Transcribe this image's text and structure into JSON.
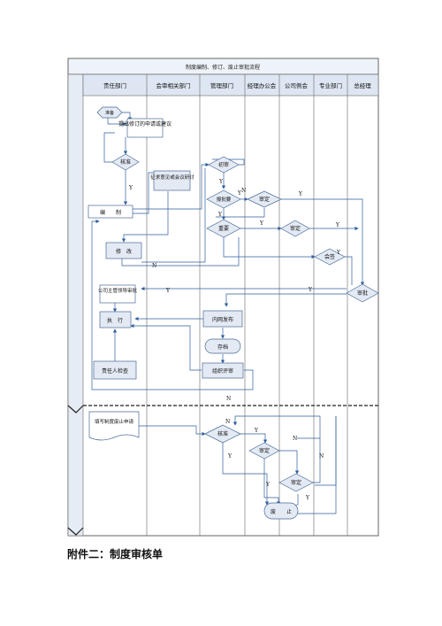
{
  "diagram": {
    "title": "制度编制、修订、废止审批流程",
    "lanes": [
      "责任部门",
      "会审相关部门",
      "管理部门",
      "经理办公会",
      "公司例会",
      "专业部门",
      "总经理"
    ],
    "nodes": {
      "start": "准备",
      "propose": "提出修订的申请或建议",
      "check1": "核准",
      "solicit": "征求意见或会议研讨",
      "compile": "编　　制",
      "revise": "修　改",
      "first_review": "初审",
      "submit": "报批要",
      "approve1": "审定",
      "important": "重要",
      "approve2": "审定",
      "sign": "会签",
      "approval": "审批",
      "leader_review": "公司主管领导审批",
      "execute": "执　行",
      "publish": "内网发布",
      "archive": "存档",
      "self_check": "责任人检查",
      "organize": "组织评审",
      "fill_form": "填写制度废止申请",
      "check2": "核准",
      "approve3": "审定",
      "approve4": "审定",
      "abolish": "废　　止"
    },
    "edge_labels": {
      "y1": "Y",
      "y2": "Y",
      "y3": "Y",
      "y4": "Y",
      "y5": "Y",
      "y6": "Y",
      "y7": "Y",
      "y8": "Y",
      "y9": "Y",
      "y10": "Y",
      "y11": "Y",
      "y12": "Y",
      "y13": "Y",
      "y14": "Y",
      "n1": "N",
      "n2": "N",
      "n3": "N",
      "n4": "N",
      "n5": "N",
      "n6": "N"
    }
  },
  "caption": "附件二：制度审核单"
}
